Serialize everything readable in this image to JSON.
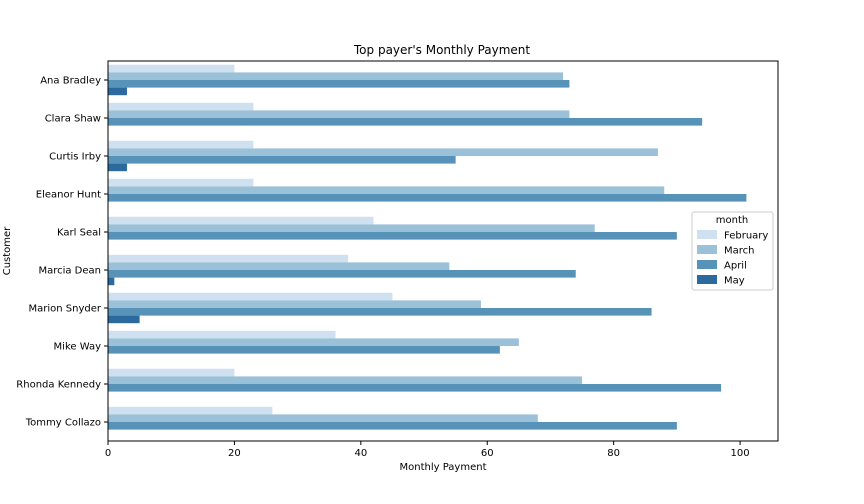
{
  "chart_data": {
    "type": "bar",
    "orientation": "horizontal",
    "title": "Top payer's Monthly Payment",
    "xlabel": "Monthly Payment",
    "ylabel": "Customer",
    "xlim": [
      0,
      106
    ],
    "xticks": [
      0,
      20,
      40,
      60,
      80,
      100
    ],
    "grid": false,
    "legend": {
      "title": "month",
      "placement": "center-right"
    },
    "categories": [
      "Ana Bradley",
      "Clara Shaw",
      "Curtis Irby",
      "Eleanor Hunt",
      "Karl Seal",
      "Marcia Dean",
      "Marion Snyder",
      "Mike Way",
      "Rhonda Kennedy",
      "Tommy Collazo"
    ],
    "series": [
      {
        "name": "February",
        "color": "#cfe0f1",
        "values": [
          20,
          23,
          23,
          23,
          42,
          38,
          45,
          36,
          20,
          26
        ]
      },
      {
        "name": "March",
        "color": "#9ac1d8",
        "values": [
          72,
          73,
          87,
          88,
          77,
          54,
          59,
          65,
          75,
          68
        ]
      },
      {
        "name": "April",
        "color": "#5793b8",
        "values": [
          73,
          94,
          55,
          101,
          90,
          74,
          86,
          62,
          97,
          90
        ]
      },
      {
        "name": "May",
        "color": "#2c6a9d",
        "values": [
          3,
          0,
          3,
          0,
          0,
          1,
          5,
          0,
          0,
          0
        ]
      }
    ]
  }
}
